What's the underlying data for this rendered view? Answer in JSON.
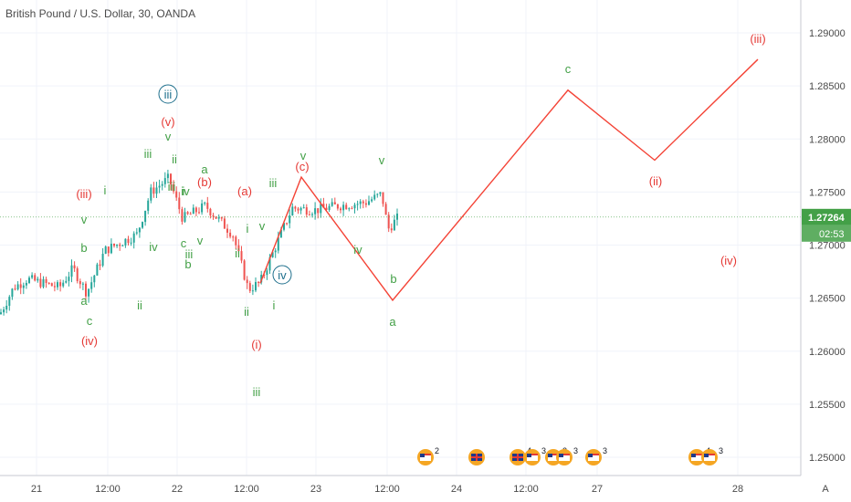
{
  "chart_data": {
    "type": "candlestick",
    "title": "British Pound / U.S. Dollar, 30, OANDA",
    "y_ticks": [
      "1.29000",
      "1.28500",
      "1.28000",
      "1.27500",
      "1.27000",
      "1.26500",
      "1.26000",
      "1.25500",
      "1.25000"
    ],
    "y_tick_values": [
      1.29,
      1.285,
      1.28,
      1.275,
      1.27,
      1.265,
      1.26,
      1.255,
      1.25
    ],
    "ylim": [
      1.2475,
      1.2935
    ],
    "x_ticks": [
      "21",
      "12:00",
      "22",
      "12:00",
      "23",
      "12:00",
      "24",
      "12:00",
      "27",
      "28"
    ],
    "current_price": "1.27264",
    "countdown": "02:53",
    "axis_mode_label": "A",
    "projection_path": [
      {
        "x_frac": 0.0,
        "y": 1.2664
      },
      {
        "x_frac": 0.04,
        "y": 1.2764
      },
      {
        "x_frac": 0.13,
        "y": 1.2648
      },
      {
        "x_frac": 0.22,
        "y": 1.2846
      },
      {
        "x_frac": 0.3,
        "y": 1.278
      },
      {
        "x_frac": 0.4,
        "y": 1.2875
      }
    ],
    "wave_labels": [
      {
        "text": "(iii)",
        "color": "#e53935"
      },
      {
        "text": "i",
        "color": "#43a047"
      },
      {
        "text": "v",
        "color": "#43a047"
      },
      {
        "text": "b",
        "color": "#43a047"
      },
      {
        "text": "a",
        "color": "#43a047"
      },
      {
        "text": "c",
        "color": "#43a047"
      },
      {
        "text": "(iv)",
        "color": "#e53935"
      },
      {
        "text": "ii",
        "color": "#43a047"
      },
      {
        "text": "iv",
        "color": "#43a047"
      },
      {
        "text": "iii",
        "color": "#43a047"
      },
      {
        "text": "iii",
        "color": "#1e6f8c"
      },
      {
        "text": "(v)",
        "color": "#e53935"
      },
      {
        "text": "v",
        "color": "#43a047"
      },
      {
        "text": "ii",
        "color": "#43a047"
      },
      {
        "text": "iii",
        "color": "#43a047"
      },
      {
        "text": "i",
        "color": "#43a047"
      },
      {
        "text": "iv",
        "color": "#43a047"
      },
      {
        "text": "a",
        "color": "#43a047"
      },
      {
        "text": "(b)",
        "color": "#e53935"
      },
      {
        "text": "c",
        "color": "#43a047"
      },
      {
        "text": "iii",
        "color": "#43a047"
      },
      {
        "text": "v",
        "color": "#43a047"
      },
      {
        "text": "b",
        "color": "#43a047"
      },
      {
        "text": "(a)",
        "color": "#e53935"
      },
      {
        "text": "ii",
        "color": "#43a047"
      },
      {
        "text": "i",
        "color": "#43a047"
      },
      {
        "text": "v",
        "color": "#43a047"
      },
      {
        "text": "i",
        "color": "#43a047"
      },
      {
        "text": "ii",
        "color": "#43a047"
      },
      {
        "text": "iii",
        "color": "#43a047"
      },
      {
        "text": "v",
        "color": "#43a047"
      },
      {
        "text": "(c)",
        "color": "#e53935"
      },
      {
        "text": "iv",
        "color": "#1e6f8c"
      },
      {
        "text": "iii",
        "color": "#43a047"
      },
      {
        "text": "(i)",
        "color": "#e53935"
      },
      {
        "text": "v",
        "color": "#43a047"
      },
      {
        "text": "iv",
        "color": "#43a047"
      },
      {
        "text": "b",
        "color": "#43a047"
      },
      {
        "text": "a",
        "color": "#43a047"
      },
      {
        "text": "c",
        "color": "#43a047"
      },
      {
        "text": "(ii)",
        "color": "#e53935"
      },
      {
        "text": "(iii)",
        "color": "#e53935"
      },
      {
        "text": "(iv)",
        "color": "#e53935"
      },
      {
        "text": "(v)",
        "color": "#e53935"
      },
      {
        "text": "4",
        "color": "#ff8f00"
      }
    ],
    "events": [
      {
        "flag": "us",
        "count": "2"
      },
      {
        "flag": "uk",
        "count": ""
      },
      {
        "flag": "uk",
        "count": "4"
      },
      {
        "flag": "us",
        "count": "3"
      },
      {
        "flag": "us",
        "count": "2"
      },
      {
        "flag": "us",
        "count": "3"
      },
      {
        "flag": "us",
        "count": "3"
      },
      {
        "flag": "us",
        "count": "4"
      },
      {
        "flag": "us",
        "count": "3"
      }
    ],
    "colors": {
      "up": "#26a69a",
      "down": "#ef5350",
      "projection": "#f44336",
      "price_line": "#43a047",
      "price_tag": "#43a047"
    }
  }
}
